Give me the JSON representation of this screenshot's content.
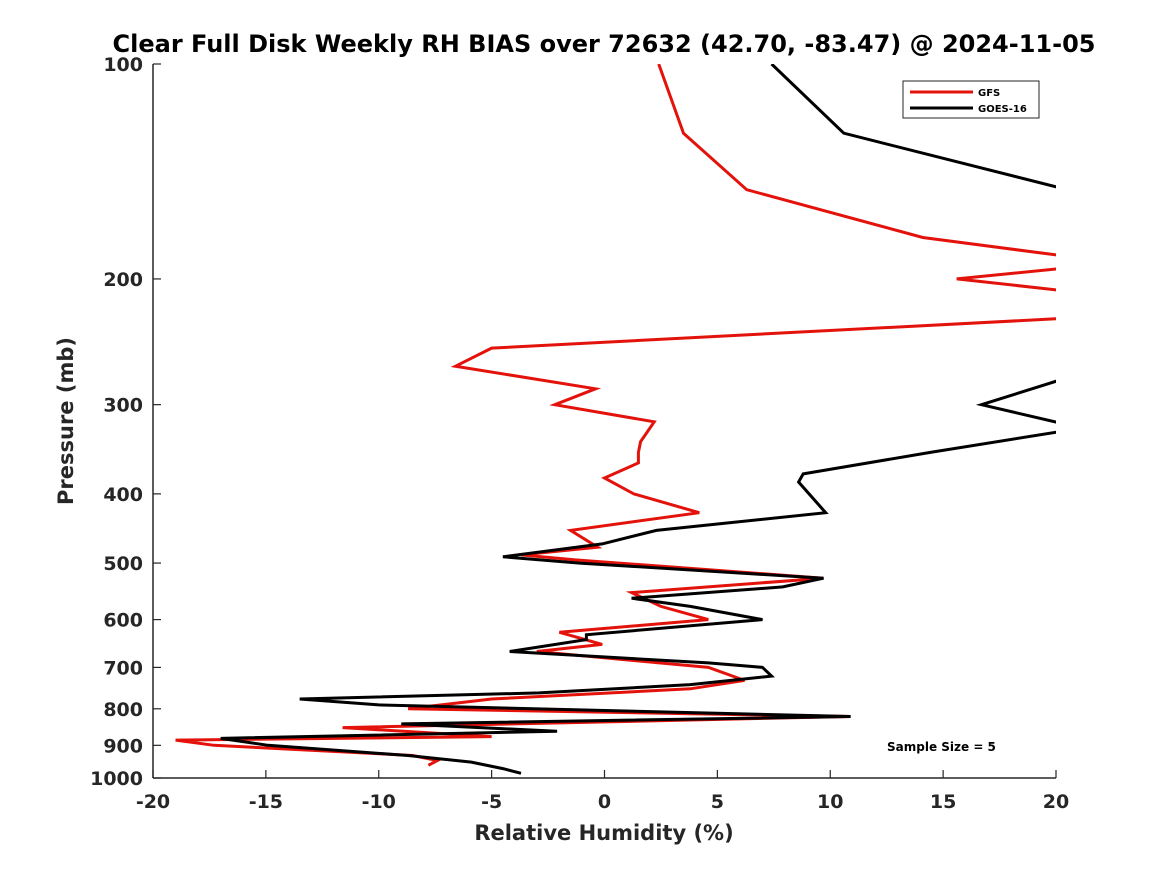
{
  "chart_data": {
    "type": "line",
    "title": "Clear Full Disk Weekly RH BIAS over 72632 (42.70, -83.47) @ 2024-11-05",
    "xlabel": "Relative Humidity (%)",
    "ylabel": "Pressure (mb)",
    "xlim": [
      -20,
      20
    ],
    "ylim": [
      100,
      1000
    ],
    "y_scale": "log",
    "y_reversed": true,
    "x_ticks": [
      "-20",
      "-15",
      "-10",
      "-5",
      "0",
      "5",
      "10",
      "15",
      "20"
    ],
    "y_ticks": [
      "100",
      "200",
      "300",
      "400",
      "500",
      "600",
      "700",
      "800",
      "900",
      "1000"
    ],
    "grid": false,
    "legend_position": "top-right",
    "annotation": "Sample Size = 5",
    "series": [
      {
        "name": "GFS",
        "color": "#e3120b",
        "points": [
          [
            2.4,
            100
          ],
          [
            3.5,
            125
          ],
          [
            6.3,
            150
          ],
          [
            14.1,
            175
          ],
          [
            20.5,
            186
          ],
          [
            20.5,
            193
          ],
          [
            15.6,
            200
          ],
          [
            20.5,
            208
          ],
          [
            20.5,
            227
          ],
          [
            -5.0,
            250
          ],
          [
            -6.6,
            265
          ],
          [
            -0.4,
            285
          ],
          [
            -2.2,
            300
          ],
          [
            2.2,
            317
          ],
          [
            1.6,
            338
          ],
          [
            1.5,
            350
          ],
          [
            1.5,
            362
          ],
          [
            0.0,
            380
          ],
          [
            1.3,
            400
          ],
          [
            4.2,
            425
          ],
          [
            -1.5,
            450
          ],
          [
            -0.3,
            475
          ],
          [
            -3.7,
            487
          ],
          [
            -1.3,
            495
          ],
          [
            9.7,
            525
          ],
          [
            1.2,
            550
          ],
          [
            2.5,
            575
          ],
          [
            4.6,
            600
          ],
          [
            -2.0,
            625
          ],
          [
            -0.1,
            650
          ],
          [
            -3.0,
            665
          ],
          [
            4.6,
            700
          ],
          [
            6.2,
            730
          ],
          [
            3.8,
            750
          ],
          [
            -5.0,
            775
          ],
          [
            -8.7,
            800
          ],
          [
            10.9,
            820
          ],
          [
            -11.6,
            850
          ],
          [
            -5.0,
            875
          ],
          [
            -19.0,
            885
          ],
          [
            -17.3,
            900
          ],
          [
            -8.5,
            930
          ],
          [
            -7.4,
            945
          ],
          [
            -7.8,
            960
          ]
        ]
      },
      {
        "name": "GOES-16",
        "color": "#000000",
        "points": [
          [
            7.4,
            100
          ],
          [
            10.6,
            125
          ],
          [
            20.5,
            150
          ],
          [
            20.5,
            275
          ],
          [
            16.7,
            300
          ],
          [
            20.5,
            320
          ],
          [
            20.5,
            326
          ],
          [
            14.4,
            350
          ],
          [
            8.8,
            375
          ],
          [
            8.6,
            385
          ],
          [
            9.8,
            425
          ],
          [
            2.3,
            450
          ],
          [
            -0.1,
            470
          ],
          [
            -4.5,
            490
          ],
          [
            -1.1,
            500
          ],
          [
            9.7,
            525
          ],
          [
            7.9,
            540
          ],
          [
            1.2,
            560
          ],
          [
            3.8,
            575
          ],
          [
            7.0,
            600
          ],
          [
            -0.8,
            630
          ],
          [
            -0.8,
            640
          ],
          [
            -4.2,
            665
          ],
          [
            4.6,
            690
          ],
          [
            7.0,
            700
          ],
          [
            7.4,
            720
          ],
          [
            3.8,
            740
          ],
          [
            -2.9,
            760
          ],
          [
            -13.5,
            775
          ],
          [
            -10.0,
            790
          ],
          [
            10.9,
            820
          ],
          [
            -9.0,
            840
          ],
          [
            -2.1,
            860
          ],
          [
            -17.0,
            880
          ],
          [
            -14.9,
            900
          ],
          [
            -8.7,
            930
          ],
          [
            -5.9,
            950
          ],
          [
            -4.5,
            970
          ],
          [
            -3.7,
            985
          ]
        ]
      }
    ]
  }
}
